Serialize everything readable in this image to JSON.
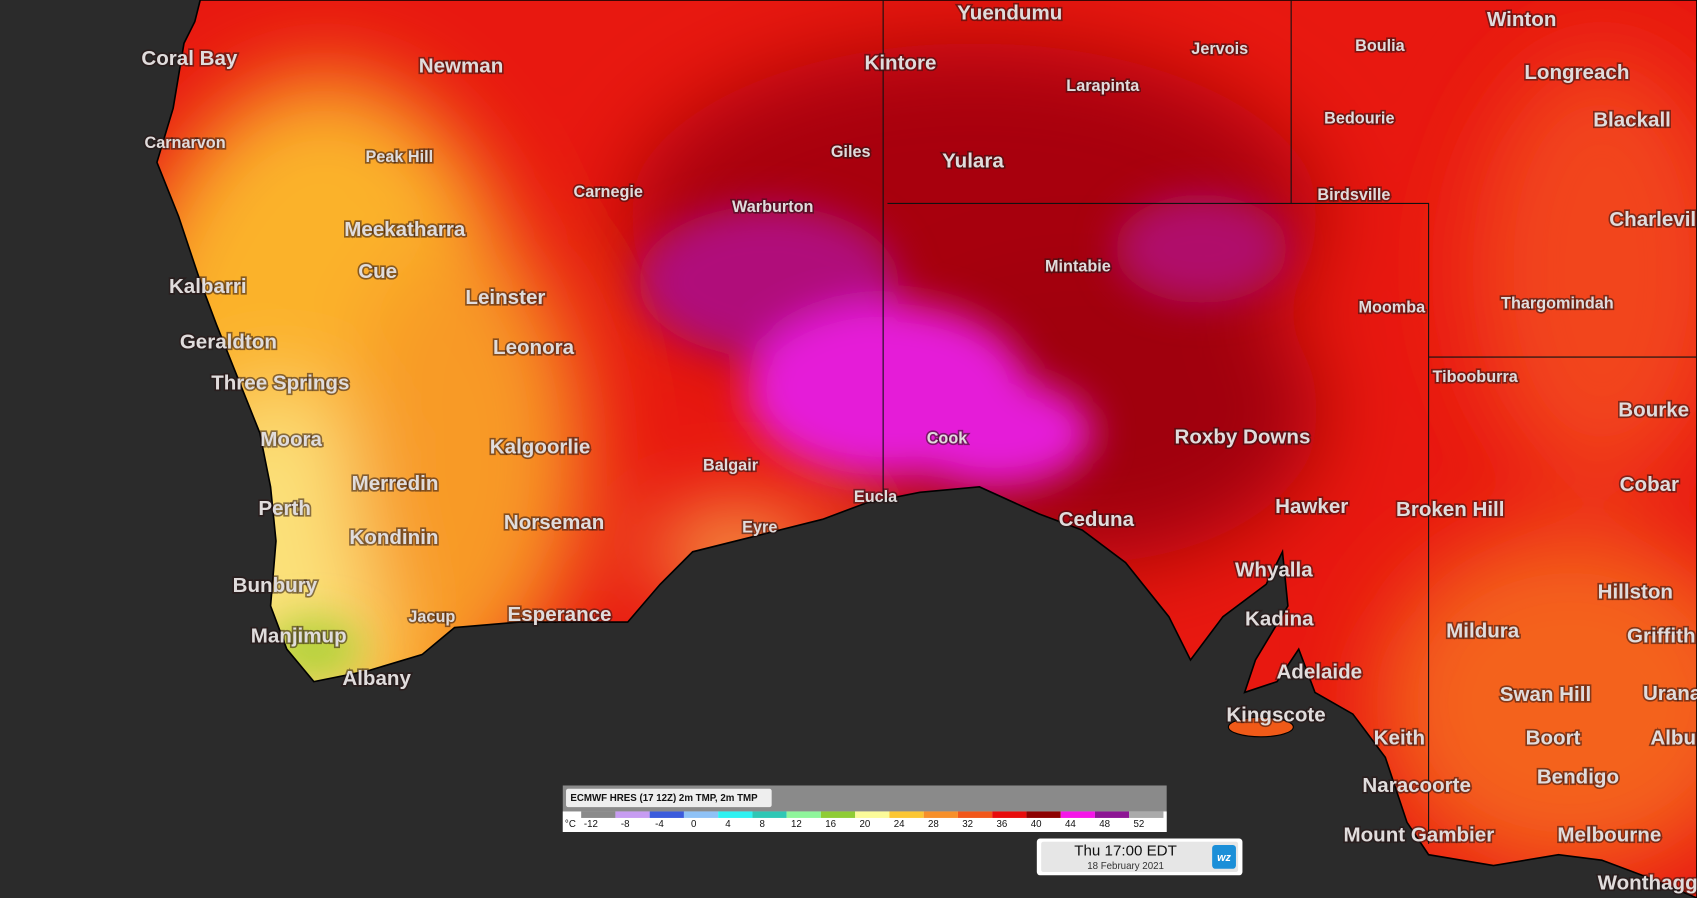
{
  "map": {
    "places": [
      {
        "label": "Coral Bay",
        "size": "large"
      },
      {
        "label": "Newman",
        "size": "large"
      },
      {
        "label": "Carnarvon",
        "size": "small"
      },
      {
        "label": "Peak Hill",
        "size": "small"
      },
      {
        "label": "Carnegie",
        "size": "small"
      },
      {
        "label": "Meekatharra",
        "size": "large"
      },
      {
        "label": "Cue",
        "size": "large"
      },
      {
        "label": "Kalbarri",
        "size": "large"
      },
      {
        "label": "Leinster",
        "size": "large"
      },
      {
        "label": "Geraldton",
        "size": "large"
      },
      {
        "label": "Leonora",
        "size": "large"
      },
      {
        "label": "Three Springs",
        "size": "large"
      },
      {
        "label": "Moora",
        "size": "large"
      },
      {
        "label": "Kalgoorlie",
        "size": "large"
      },
      {
        "label": "Merredin",
        "size": "large"
      },
      {
        "label": "Perth",
        "size": "large"
      },
      {
        "label": "Kondinin",
        "size": "large"
      },
      {
        "label": "Norseman",
        "size": "large"
      },
      {
        "label": "Bunbury",
        "size": "large"
      },
      {
        "label": "Jacup",
        "size": "small"
      },
      {
        "label": "Esperance",
        "size": "large"
      },
      {
        "label": "Manjimup",
        "size": "large"
      },
      {
        "label": "Albany",
        "size": "large"
      },
      {
        "label": "Balgair",
        "size": "small"
      },
      {
        "label": "Eyre",
        "size": "small"
      },
      {
        "label": "Eucla",
        "size": "small"
      },
      {
        "label": "Cook",
        "size": "small"
      },
      {
        "label": "Warburton",
        "size": "small"
      },
      {
        "label": "Giles",
        "size": "small"
      },
      {
        "label": "Yuendumu",
        "size": "large"
      },
      {
        "label": "Kintore",
        "size": "large"
      },
      {
        "label": "Yulara",
        "size": "large"
      },
      {
        "label": "Larapinta",
        "size": "small"
      },
      {
        "label": "Jervois",
        "size": "small"
      },
      {
        "label": "Mintabie",
        "size": "small"
      },
      {
        "label": "Boulia",
        "size": "small"
      },
      {
        "label": "Bedourie",
        "size": "small"
      },
      {
        "label": "Birdsville",
        "size": "small"
      },
      {
        "label": "Winton",
        "size": "large"
      },
      {
        "label": "Longreach",
        "size": "large"
      },
      {
        "label": "Blackall",
        "size": "large"
      },
      {
        "label": "Charleville",
        "size": "large"
      },
      {
        "label": "Moomba",
        "size": "small"
      },
      {
        "label": "Thargomindah",
        "size": "small"
      },
      {
        "label": "Tibooburra",
        "size": "small"
      },
      {
        "label": "Bourke",
        "size": "large"
      },
      {
        "label": "Roxby Downs",
        "size": "large"
      },
      {
        "label": "Cobar",
        "size": "large"
      },
      {
        "label": "Hawker",
        "size": "large"
      },
      {
        "label": "Broken Hill",
        "size": "large"
      },
      {
        "label": "Ceduna",
        "size": "large"
      },
      {
        "label": "Whyalla",
        "size": "large"
      },
      {
        "label": "Hillston",
        "size": "large"
      },
      {
        "label": "Kadina",
        "size": "large"
      },
      {
        "label": "Mildura",
        "size": "large"
      },
      {
        "label": "Griffith",
        "size": "large"
      },
      {
        "label": "Adelaide",
        "size": "large"
      },
      {
        "label": "Swan Hill",
        "size": "large"
      },
      {
        "label": "Urana",
        "size": "large"
      },
      {
        "label": "Kingscote",
        "size": "large"
      },
      {
        "label": "Keith",
        "size": "large"
      },
      {
        "label": "Boort",
        "size": "large"
      },
      {
        "label": "Albury",
        "size": "large"
      },
      {
        "label": "Naracoorte",
        "size": "large"
      },
      {
        "label": "Bendigo",
        "size": "large"
      },
      {
        "label": "Mount Gambier",
        "size": "large"
      },
      {
        "label": "Melbourne",
        "size": "large"
      },
      {
        "label": "Wonthaggi",
        "size": "large"
      }
    ]
  },
  "legend": {
    "title": "ECMWF HRES (17 12Z) 2m TMP, 2m TMP",
    "unit": "°C",
    "ticks": [
      -12,
      -8,
      -4,
      0,
      4,
      8,
      12,
      16,
      20,
      24,
      28,
      32,
      36,
      40,
      44,
      48,
      52
    ],
    "colors": [
      "#8a8a8a",
      "#c79cf2",
      "#3b5bdc",
      "#8fc2f7",
      "#2ef2f2",
      "#2fc7b5",
      "#8ff59b",
      "#8fcc35",
      "#fbfb9a",
      "#fbc634",
      "#f7902a",
      "#f2561a",
      "#e80c0c",
      "#8e0000",
      "#f516e8",
      "#8c1493",
      "#aaaaaa"
    ]
  },
  "time": {
    "title": "Thu 17:00 EDT",
    "date": "18 February 2021",
    "logo": "wz"
  }
}
